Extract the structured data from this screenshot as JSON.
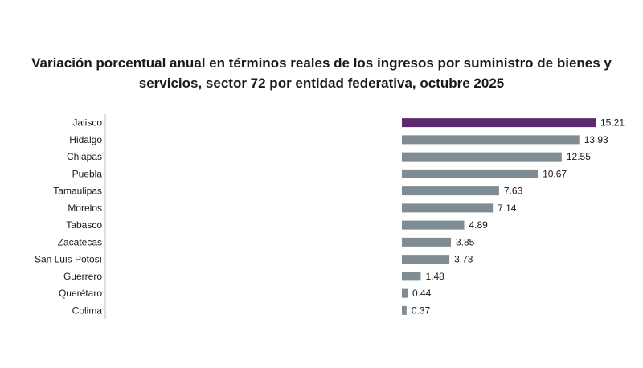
{
  "chart_data": {
    "type": "bar",
    "orientation": "horizontal",
    "title_lines": [
      "Variación porcentual anual en términos reales de los ingresos por suministro de bienes y",
      "servicios, sector 72 por entidad federativa, octubre 2025"
    ],
    "xlabel": "",
    "ylabel": "",
    "xlim": [
      0,
      15.21
    ],
    "grid": false,
    "legend": "none",
    "categories": [
      "Jalisco",
      "Hidalgo",
      "Chiapas",
      "Puebla",
      "Tamaulipas",
      "Morelos",
      "Tabasco",
      "Zacatecas",
      "San Luis Potosí",
      "Guerrero",
      "Querétaro",
      "Colima"
    ],
    "values": [
      15.21,
      13.93,
      12.55,
      10.67,
      7.63,
      7.14,
      4.89,
      3.85,
      3.73,
      1.48,
      0.44,
      0.37
    ],
    "value_labels": [
      "15.21",
      "13.93",
      "12.55",
      "10.67",
      "7.63",
      "7.14",
      "4.89",
      "3.85",
      "3.73",
      "1.48",
      "0.44",
      "0.37"
    ],
    "highlight_category": "Jalisco",
    "colors": {
      "highlight": "#5b2a6e",
      "bar": "#7f8c93",
      "axis": "#bfbfbf"
    }
  }
}
